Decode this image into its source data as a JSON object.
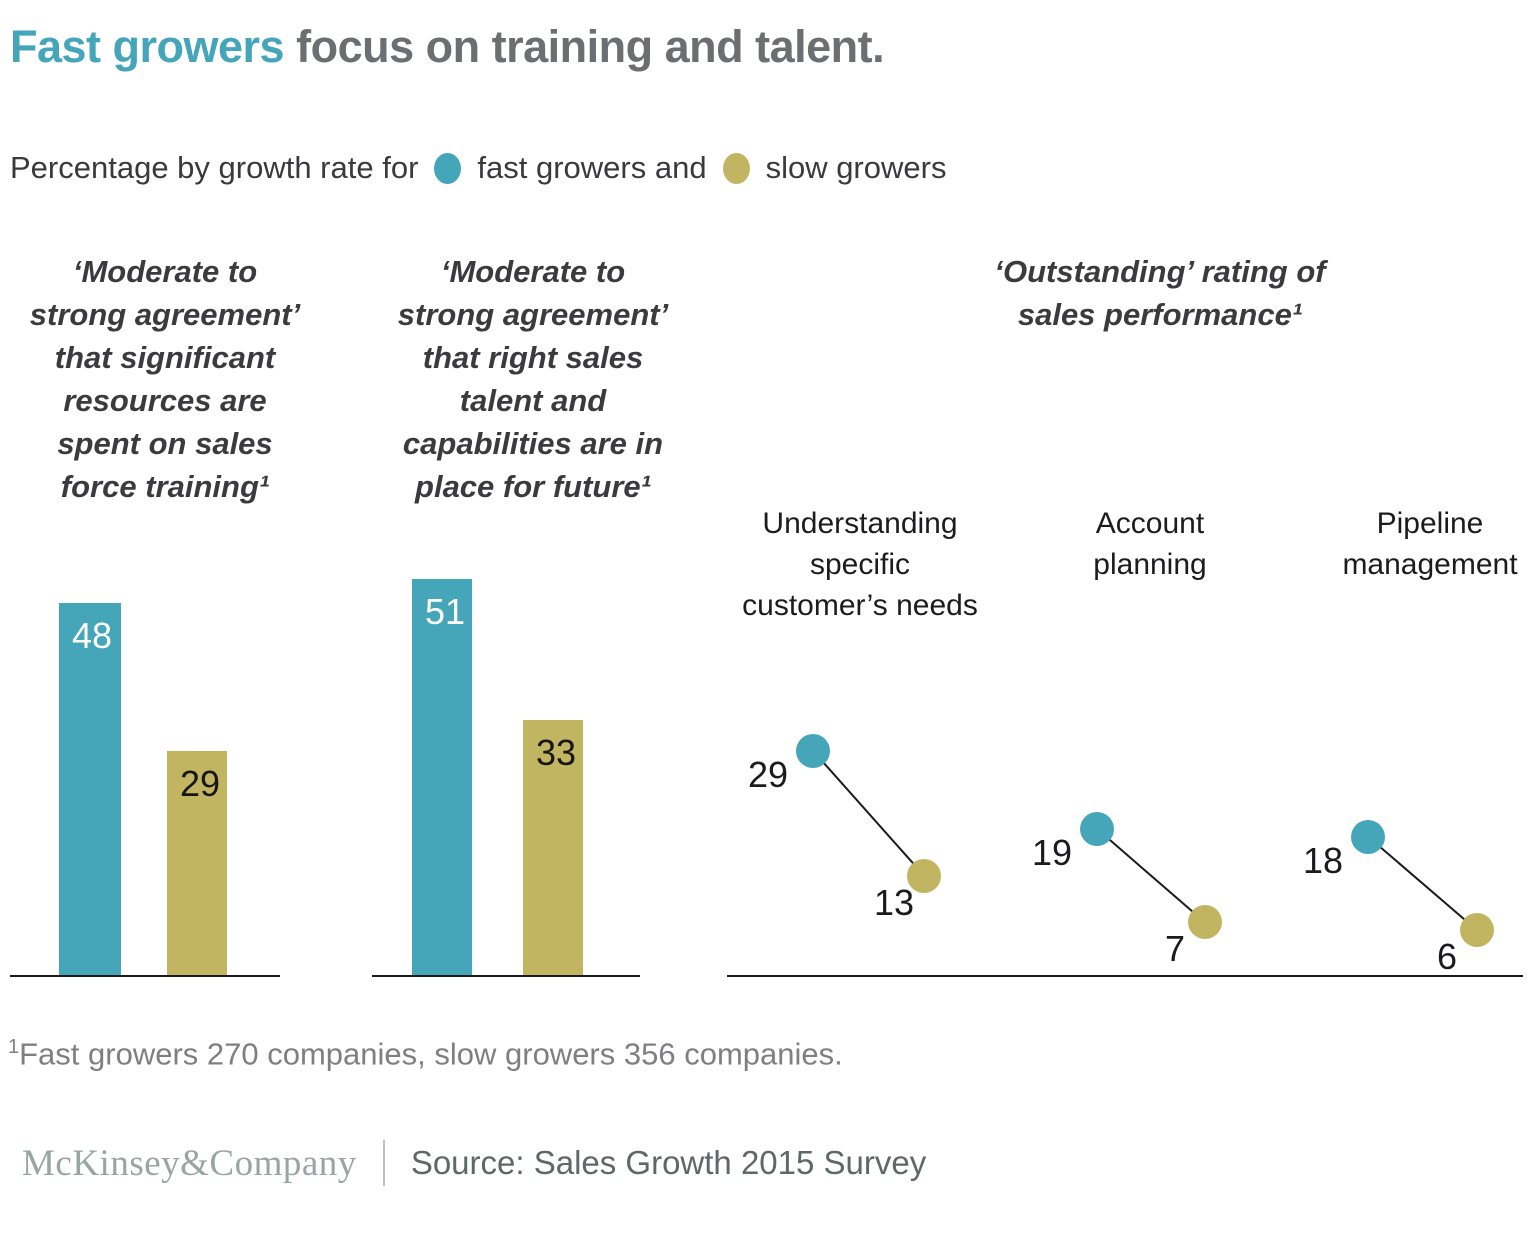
{
  "title": {
    "highlight": "Fast growers",
    "rest": " focus on training and talent."
  },
  "legend": {
    "prefix": "Percentage by growth rate for",
    "fast": {
      "label": "fast growers and",
      "color": "#45A5B9"
    },
    "slow": {
      "label": "slow growers",
      "color": "#C2B561"
    }
  },
  "chart_data": [
    {
      "type": "bar",
      "title": "‘Moderate to strong agreement’ that significant resources are spent on sales force training¹",
      "title_lines": [
        "‘Moderate to",
        "strong agreement’",
        "that significant",
        "resources are",
        "spent on sales",
        "force training¹"
      ],
      "categories": [
        "fast growers",
        "slow growers"
      ],
      "values": [
        48,
        29
      ],
      "unit": "%",
      "ylim": [
        0,
        51
      ],
      "grid": false
    },
    {
      "type": "bar",
      "title": "‘Moderate to strong agreement’ that right sales talent and capabilities are in place for future¹",
      "title_lines": [
        "‘Moderate to",
        "strong agreement’",
        "that right sales",
        "talent and",
        "capabilities are in",
        "place for future¹"
      ],
      "categories": [
        "fast growers",
        "slow growers"
      ],
      "values": [
        51,
        33
      ],
      "unit": "%",
      "ylim": [
        0,
        51
      ],
      "grid": false
    },
    {
      "type": "scatter",
      "title": "‘Outstanding’ rating of sales performance¹",
      "title_lines": [
        "‘Outstanding’ rating of",
        "sales performance¹"
      ],
      "categories": [
        "Understanding specific customer’s needs",
        "Account planning",
        "Pipeline management"
      ],
      "series": [
        {
          "name": "fast growers",
          "color": "#45A5B9",
          "values": [
            29,
            19,
            18
          ]
        },
        {
          "name": "slow growers",
          "color": "#C2B561",
          "values": [
            13,
            7,
            6
          ]
        }
      ],
      "unit": "%",
      "ylim": [
        0,
        51
      ],
      "grid": false
    }
  ],
  "footnote": {
    "superscript": "1",
    "text": "Fast growers 270 companies, slow growers 356 companies."
  },
  "footer": {
    "brand": "McKinsey&Company",
    "source": "Source: Sales Growth 2015 Survey"
  }
}
